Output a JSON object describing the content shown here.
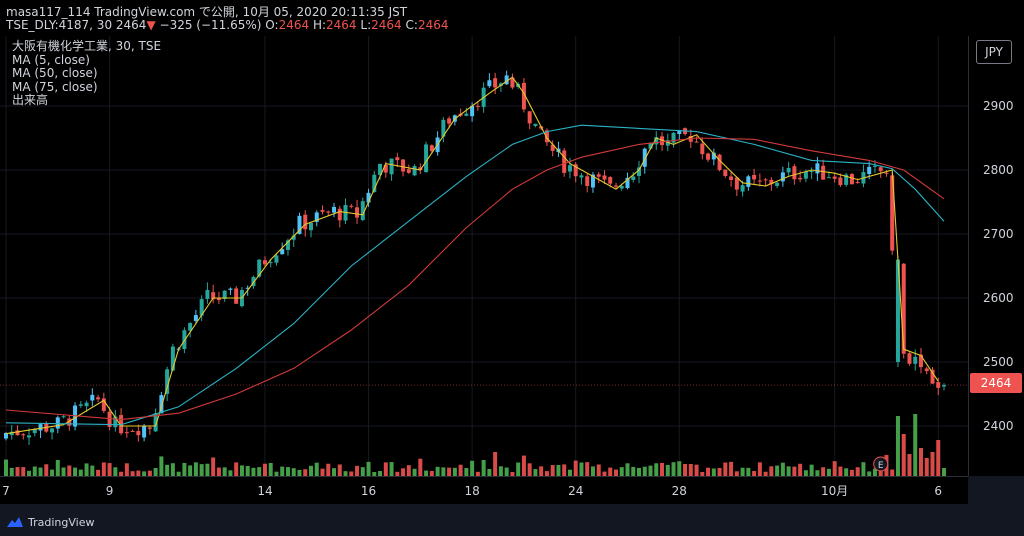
{
  "header": {
    "line1": "masa117_114 TradingView.com で公開, 10月 05, 2020 20:11:35 JST",
    "ticker": "TSE_DLY:4187, 30",
    "last": "2464",
    "change": "−325 (−11.65%)",
    "ohlc": {
      "o_label": "O:",
      "o": "2464",
      "h_label": "H:",
      "h": "2464",
      "l_label": "L:",
      "l": "2464",
      "c_label": "C:",
      "c": "2464"
    }
  },
  "legend": {
    "symbol": "大阪有機化学工業, 30, TSE",
    "ma5": "MA (5, close)",
    "ma50": "MA (50, close)",
    "ma75": "MA (75, close)",
    "volume": "出来高"
  },
  "currency": "JPY",
  "price_badge": "2464",
  "earnings_marker": "E",
  "brand": "TradingView",
  "colors": {
    "up": "#26a69a",
    "up_bright": "#4fc3f7",
    "down": "#ef5350",
    "vol_up": "#4caf50",
    "vol_down": "#ef5350",
    "ma5": "#e6c82e",
    "ma50": "#2bb2c5",
    "ma75": "#d13a3a",
    "bg": "#000000"
  },
  "chart_data": {
    "type": "candlestick",
    "title": "大阪有機化学工業, 30, TSE",
    "y_ticks": [
      2400,
      2500,
      2600,
      2700,
      2800,
      2900
    ],
    "ylim": [
      2330,
      3000
    ],
    "x_ticks": [
      {
        "label": "7",
        "index": 0
      },
      {
        "label": "9",
        "index": 18
      },
      {
        "label": "14",
        "index": 45
      },
      {
        "label": "16",
        "index": 63
      },
      {
        "label": "18",
        "index": 81
      },
      {
        "label": "24",
        "index": 99
      },
      {
        "label": "28",
        "index": 117
      },
      {
        "label": "10月",
        "index": 144
      },
      {
        "label": "6",
        "index": 162
      }
    ],
    "bars_count": 164,
    "last_price": 2464,
    "series": [
      {
        "name": "MA (5, close)",
        "points": [
          [
            0,
            2388
          ],
          [
            10,
            2402
          ],
          [
            17,
            2440
          ],
          [
            20,
            2400
          ],
          [
            26,
            2400
          ],
          [
            30,
            2520
          ],
          [
            36,
            2600
          ],
          [
            41,
            2600
          ],
          [
            46,
            2660
          ],
          [
            52,
            2715
          ],
          [
            58,
            2735
          ],
          [
            62,
            2730
          ],
          [
            66,
            2810
          ],
          [
            72,
            2800
          ],
          [
            78,
            2880
          ],
          [
            84,
            2920
          ],
          [
            88,
            2945
          ],
          [
            90,
            2920
          ],
          [
            94,
            2850
          ],
          [
            98,
            2810
          ],
          [
            102,
            2790
          ],
          [
            106,
            2770
          ],
          [
            110,
            2800
          ],
          [
            113,
            2850
          ],
          [
            116,
            2840
          ],
          [
            120,
            2855
          ],
          [
            124,
            2815
          ],
          [
            128,
            2780
          ],
          [
            132,
            2775
          ],
          [
            136,
            2790
          ],
          [
            140,
            2800
          ],
          [
            144,
            2795
          ],
          [
            148,
            2785
          ],
          [
            152,
            2795
          ],
          [
            154,
            2800
          ],
          [
            156,
            2520
          ],
          [
            159,
            2510
          ],
          [
            162,
            2470
          ]
        ]
      },
      {
        "name": "MA (50, close)",
        "points": [
          [
            0,
            2405
          ],
          [
            20,
            2402
          ],
          [
            30,
            2430
          ],
          [
            40,
            2490
          ],
          [
            50,
            2560
          ],
          [
            60,
            2650
          ],
          [
            70,
            2720
          ],
          [
            80,
            2790
          ],
          [
            88,
            2840
          ],
          [
            94,
            2860
          ],
          [
            100,
            2870
          ],
          [
            110,
            2865
          ],
          [
            120,
            2860
          ],
          [
            130,
            2840
          ],
          [
            140,
            2815
          ],
          [
            150,
            2810
          ],
          [
            154,
            2802
          ],
          [
            158,
            2770
          ],
          [
            163,
            2720
          ]
        ]
      },
      {
        "name": "MA (75, close)",
        "points": [
          [
            0,
            2425
          ],
          [
            20,
            2410
          ],
          [
            30,
            2420
          ],
          [
            40,
            2450
          ],
          [
            50,
            2490
          ],
          [
            60,
            2550
          ],
          [
            70,
            2620
          ],
          [
            80,
            2710
          ],
          [
            88,
            2770
          ],
          [
            94,
            2800
          ],
          [
            100,
            2820
          ],
          [
            110,
            2840
          ],
          [
            120,
            2850
          ],
          [
            130,
            2848
          ],
          [
            140,
            2830
          ],
          [
            150,
            2815
          ],
          [
            156,
            2800
          ],
          [
            163,
            2755
          ]
        ]
      }
    ]
  }
}
